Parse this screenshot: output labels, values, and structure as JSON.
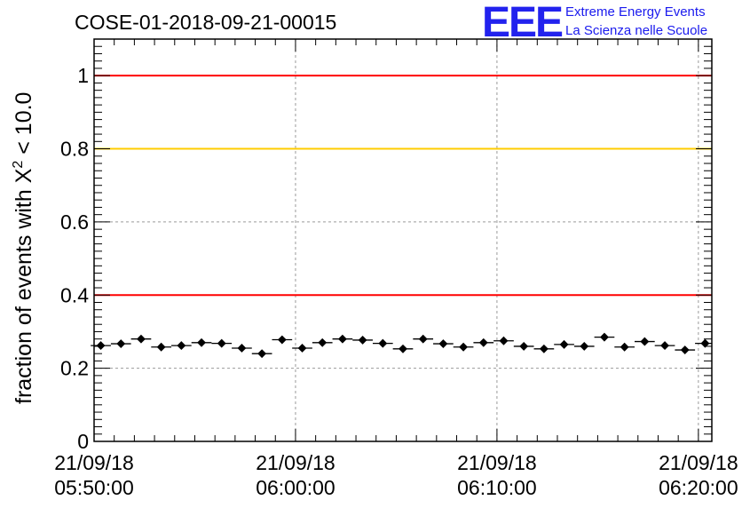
{
  "title": "COSE-01-2018-09-21-00015",
  "logo": {
    "mark": "EEE",
    "line1": "Extreme Energy Events",
    "line2": "La Scienza nelle Scuole",
    "color": "#1a1aee"
  },
  "chart_data": {
    "type": "scatter",
    "title": "COSE-01-2018-09-21-00015",
    "ylabel_main": "fraction of events with Χ",
    "ylabel_sup": "2",
    "ylabel_tail": " < 10.0",
    "xlabel": "",
    "ylim": [
      0,
      1.1
    ],
    "yticks": [
      {
        "value": 0,
        "label": "0"
      },
      {
        "value": 0.2,
        "label": "0.2"
      },
      {
        "value": 0.4,
        "label": "0.4"
      },
      {
        "value": 0.6,
        "label": "0.6"
      },
      {
        "value": 0.8,
        "label": "0.8"
      },
      {
        "value": 1,
        "label": "1"
      }
    ],
    "xlim": [
      "05:50:00",
      "06:20:40"
    ],
    "xticks": [
      {
        "time": "05:50:00",
        "date": "21/09/18"
      },
      {
        "time": "06:00:00",
        "date": "21/09/18"
      },
      {
        "time": "06:10:00",
        "date": "21/09/18"
      },
      {
        "time": "06:20:00",
        "date": "21/09/18"
      }
    ],
    "grid": true,
    "reference_lines": [
      {
        "y": 1.0,
        "color": "#ff0000"
      },
      {
        "y": 0.8,
        "color": "#ffcc00"
      },
      {
        "y": 0.4,
        "color": "#ff0000"
      }
    ],
    "bin_width": "00:01:00",
    "series": [
      {
        "marker_color": "#000000",
        "points": [
          {
            "x": "05:50:20",
            "y": 0.262
          },
          {
            "x": "05:51:20",
            "y": 0.267
          },
          {
            "x": "05:52:20",
            "y": 0.28
          },
          {
            "x": "05:53:20",
            "y": 0.258
          },
          {
            "x": "05:54:20",
            "y": 0.262
          },
          {
            "x": "05:55:20",
            "y": 0.27
          },
          {
            "x": "05:56:20",
            "y": 0.268
          },
          {
            "x": "05:57:20",
            "y": 0.255
          },
          {
            "x": "05:58:20",
            "y": 0.24
          },
          {
            "x": "05:59:20",
            "y": 0.278
          },
          {
            "x": "06:00:20",
            "y": 0.255
          },
          {
            "x": "06:01:20",
            "y": 0.27
          },
          {
            "x": "06:02:20",
            "y": 0.28
          },
          {
            "x": "06:03:20",
            "y": 0.277
          },
          {
            "x": "06:04:20",
            "y": 0.268
          },
          {
            "x": "06:05:20",
            "y": 0.253
          },
          {
            "x": "06:06:20",
            "y": 0.28
          },
          {
            "x": "06:07:20",
            "y": 0.267
          },
          {
            "x": "06:08:20",
            "y": 0.258
          },
          {
            "x": "06:09:20",
            "y": 0.27
          },
          {
            "x": "06:10:20",
            "y": 0.275
          },
          {
            "x": "06:11:20",
            "y": 0.26
          },
          {
            "x": "06:12:20",
            "y": 0.253
          },
          {
            "x": "06:13:20",
            "y": 0.265
          },
          {
            "x": "06:14:20",
            "y": 0.26
          },
          {
            "x": "06:15:20",
            "y": 0.285
          },
          {
            "x": "06:16:20",
            "y": 0.258
          },
          {
            "x": "06:17:20",
            "y": 0.273
          },
          {
            "x": "06:18:20",
            "y": 0.262
          },
          {
            "x": "06:19:20",
            "y": 0.25
          },
          {
            "x": "06:20:20",
            "y": 0.268
          }
        ]
      }
    ]
  }
}
